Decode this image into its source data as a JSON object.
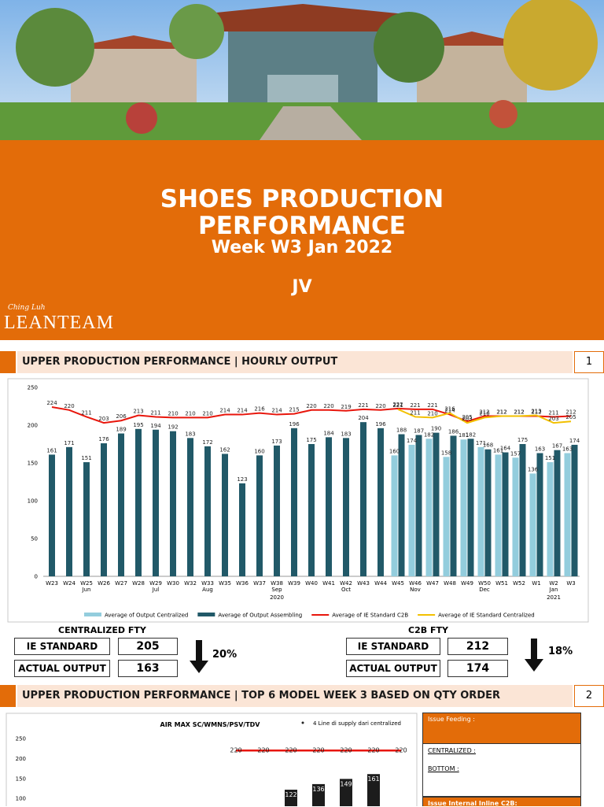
{
  "header": {
    "title_line1": "SHOES PRODUCTION",
    "title_line2": "PERFORMANCE",
    "subtitle": "Week W3 Jan 2022",
    "unit": "JV",
    "logo_brand": "Ching Luh",
    "logo_name": "LEANTEAM"
  },
  "section1": {
    "title": "UPPER PRODUCTION PERFORMANCE | HOURLY OUTPUT",
    "number": 1
  },
  "summary": [
    {
      "title": "CENTRALIZED FTY",
      "rows": [
        {
          "label": "IE STANDARD",
          "value": 205
        },
        {
          "label": "ACTUAL OUTPUT",
          "value": 163
        }
      ],
      "change": "20%"
    },
    {
      "title": "C2B FTY",
      "rows": [
        {
          "label": "IE STANDARD",
          "value": 212
        },
        {
          "label": "ACTUAL OUTPUT",
          "value": 174
        }
      ],
      "change": "18%"
    }
  ],
  "section2": {
    "title": "UPPER PRODUCTION PERFORMANCE | TOP 6 MODEL WEEK 3 BASED ON QTY ORDER",
    "number": 2
  },
  "issues": {
    "feeding": "Issue Feeding :",
    "centralized": "CENTRALIZED :",
    "bottom": "BOTTOM :",
    "internal": "Issue Internal Inline C2B:"
  },
  "chart_data": [
    {
      "type": "bar",
      "categories": [
        "W23",
        "W24",
        "W25",
        "W26",
        "W27",
        "W28",
        "W29",
        "W30",
        "W32",
        "W33",
        "W35",
        "W36",
        "W37",
        "W38",
        "W39",
        "W40",
        "W41",
        "W42",
        "W43",
        "W44",
        "W45",
        "W46",
        "W47",
        "W48",
        "W49",
        "W50",
        "W51",
        "W52",
        "W1",
        "W2",
        "W3"
      ],
      "month_labels": [
        null,
        null,
        "Jun",
        null,
        null,
        null,
        "Jul",
        null,
        null,
        "Aug",
        null,
        null,
        null,
        "Sep",
        null,
        null,
        null,
        "Oct",
        null,
        null,
        null,
        "Nov",
        null,
        null,
        null,
        "Dec",
        null,
        null,
        null,
        "Jan",
        null
      ],
      "year_labels": [
        null,
        null,
        null,
        null,
        null,
        null,
        null,
        null,
        null,
        null,
        null,
        null,
        null,
        "2020",
        null,
        null,
        null,
        null,
        null,
        null,
        null,
        null,
        null,
        null,
        null,
        null,
        null,
        null,
        null,
        "2021",
        null
      ],
      "ylim": [
        0,
        250
      ],
      "yticks": [
        0,
        50,
        100,
        150,
        200,
        250
      ],
      "legend": "bottom",
      "value_label_position": "above",
      "series": [
        {
          "name": "Average of Output Centralized",
          "type": "bar",
          "color": "#93cddd",
          "values": [
            null,
            null,
            null,
            null,
            null,
            null,
            null,
            null,
            null,
            null,
            null,
            null,
            null,
            null,
            null,
            null,
            null,
            null,
            null,
            null,
            160,
            174,
            182,
            158,
            181,
            171,
            161,
            157,
            136,
            151,
            163
          ]
        },
        {
          "name": "Average of Output Assembling",
          "type": "bar",
          "color": "#215968",
          "values": [
            161,
            171,
            151,
            176,
            189,
            195,
            194,
            192,
            183,
            172,
            162,
            123,
            160,
            173,
            196,
            175,
            184,
            183,
            204,
            196,
            188,
            187,
            190,
            186,
            182,
            168,
            164,
            175,
            163,
            167,
            174
          ]
        },
        {
          "name": "Average of IE Standard C2B",
          "type": "line",
          "color": "#e8160c",
          "values": [
            224,
            220,
            211,
            203,
            206,
            213,
            211,
            210,
            210,
            210,
            214,
            214,
            216,
            214,
            215,
            220,
            220,
            219,
            221,
            220,
            222,
            221,
            221,
            214,
            205,
            212,
            212,
            212,
            212,
            211,
            212
          ]
        },
        {
          "name": "Average of IE Standard Centralized",
          "type": "line",
          "color": "#f2c000",
          "values": [
            null,
            null,
            null,
            null,
            null,
            null,
            null,
            null,
            null,
            null,
            null,
            null,
            null,
            null,
            null,
            null,
            null,
            null,
            null,
            null,
            221,
            211,
            210,
            216,
            203,
            210,
            212,
            212,
            213,
            203,
            205
          ]
        }
      ]
    },
    {
      "type": "bar",
      "title": "AIR MAX SC/WMNS/PSV/TDV",
      "note": "4 Line di supply dari centralized",
      "categories": [
        null,
        null,
        null,
        null,
        null,
        null,
        null
      ],
      "ylim": [
        0,
        250
      ],
      "yticks": [
        100,
        150,
        200,
        250
      ],
      "value_label_position": "inside",
      "series": [
        {
          "type": "bar",
          "color": "#1c1c1c",
          "values": [
            null,
            null,
            122,
            136,
            149,
            161,
            null
          ]
        },
        {
          "type": "line",
          "color": "#e8160c",
          "values": [
            220,
            220,
            220,
            220,
            220,
            220,
            220
          ]
        }
      ]
    }
  ]
}
